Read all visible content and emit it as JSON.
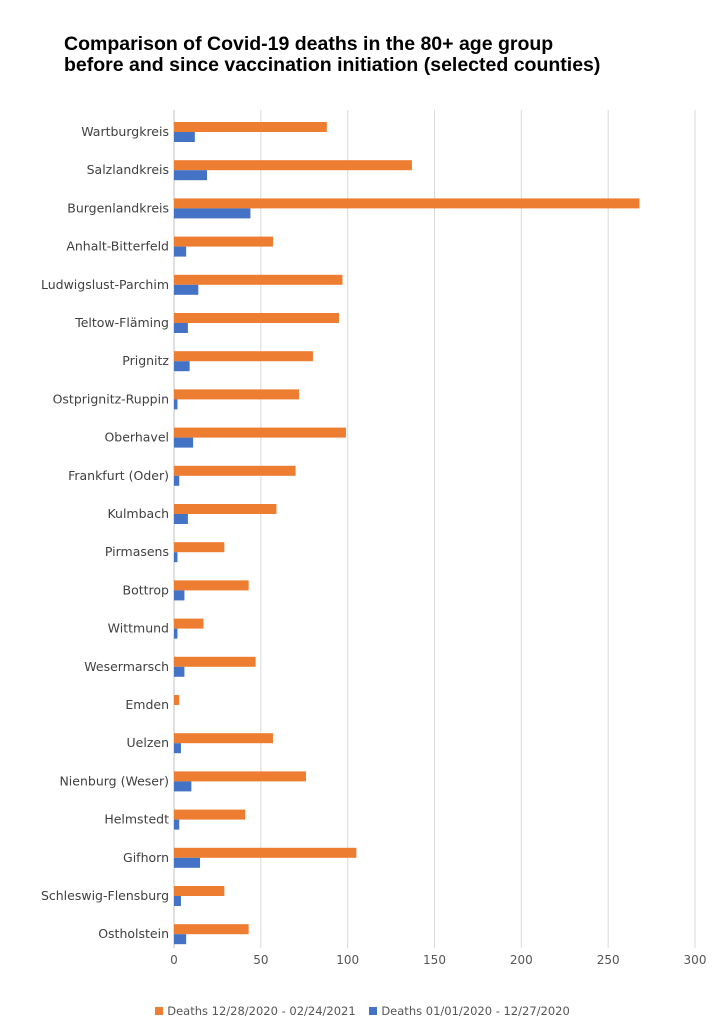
{
  "chart_data": {
    "type": "bar",
    "orientation": "horizontal",
    "title": [
      "Comparison of Covid-19 deaths in the 80+ age group",
      "before and since vaccination initiation (selected counties)"
    ],
    "xlim": [
      0,
      300
    ],
    "xticks": [
      0,
      50,
      100,
      150,
      200,
      250,
      300
    ],
    "grid": true,
    "legend_position": "bottom",
    "categories": [
      "Wartburgkreis",
      "Salzlandkreis",
      "Burgenlandkreis",
      "Anhalt-Bitterfeld",
      "Ludwigslust-Parchim",
      "Teltow-Fläming",
      "Prignitz",
      "Ostprignitz-Ruppin",
      "Oberhavel",
      "Frankfurt (Oder)",
      "Kulmbach",
      "Pirmasens",
      "Bottrop",
      "Wittmund",
      "Wesermarsch",
      "Emden",
      "Uelzen",
      "Nienburg (Weser)",
      "Helmstedt",
      "Gifhorn",
      "Schleswig-Flensburg",
      "Ostholstein"
    ],
    "series": [
      {
        "name": "Deaths 12/28/2020 - 02/24/2021",
        "color": "#ed7d31",
        "values": [
          88,
          137,
          268,
          57,
          97,
          95,
          80,
          72,
          99,
          70,
          59,
          29,
          43,
          17,
          47,
          3,
          57,
          76,
          41,
          105,
          29,
          43
        ]
      },
      {
        "name": "Deaths 01/01/2020 - 12/27/2020",
        "color": "#4472c4",
        "values": [
          12,
          19,
          44,
          7,
          14,
          8,
          9,
          2,
          11,
          3,
          8,
          2,
          6,
          2,
          6,
          0,
          4,
          10,
          3,
          15,
          4,
          7
        ]
      }
    ]
  }
}
